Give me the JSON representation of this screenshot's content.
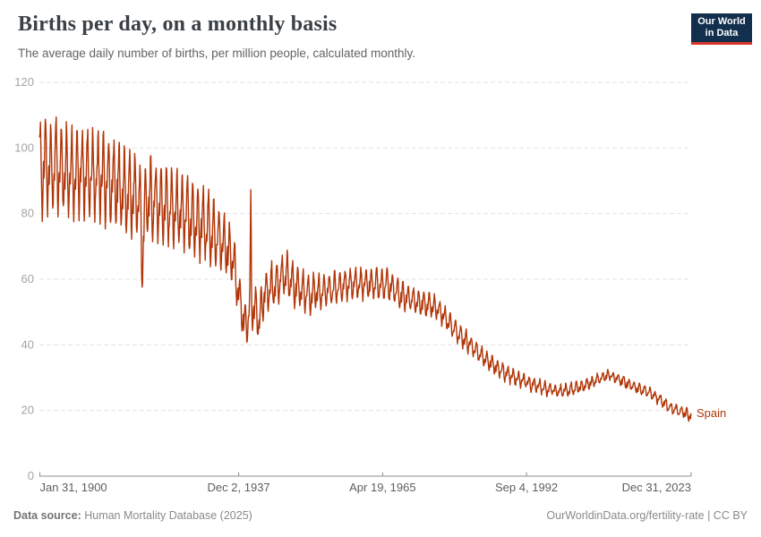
{
  "header": {
    "title": "Births per day, on a monthly basis",
    "subtitle": "The average daily number of births, per million people, calculated monthly.",
    "logo": {
      "line1": "Our World",
      "line2": "in Data",
      "bg_color": "#12304e",
      "bar_color": "#d8352b"
    }
  },
  "chart_data": {
    "type": "line",
    "title": "Births per day, on a monthly basis",
    "subtitle": "The average daily number of births, per million people, calculated monthly.",
    "frequency": "monthly",
    "grid": true,
    "legend_position": "end-of-line-label",
    "x_axis": {
      "ticks": [
        {
          "label": "Jan 31, 1900",
          "t": 1900.085,
          "anchor": "start"
        },
        {
          "label": "Dec 2, 1937",
          "t": 1937.918,
          "anchor": "middle"
        },
        {
          "label": "Apr 19, 1965",
          "t": 1965.3,
          "anchor": "middle"
        },
        {
          "label": "Sep 4, 1992",
          "t": 1992.675,
          "anchor": "middle"
        },
        {
          "label": "Dec 31, 2023",
          "t": 2023.997,
          "anchor": "end"
        }
      ],
      "range": [
        1900.0,
        2024.0
      ]
    },
    "y_axis": {
      "ticks": [
        0,
        20,
        40,
        60,
        80,
        100,
        120
      ],
      "min": 0,
      "max": 120
    },
    "series": [
      {
        "name": "Spain",
        "color": "#b13507",
        "unit": "births per day per million people",
        "trend_points": [
          [
            1900,
            93
          ],
          [
            1903,
            94
          ],
          [
            1906,
            93
          ],
          [
            1910,
            91.5
          ],
          [
            1914,
            89
          ],
          [
            1917,
            85.5
          ],
          [
            1920,
            84
          ],
          [
            1923,
            83
          ],
          [
            1926,
            80.5
          ],
          [
            1929,
            78
          ],
          [
            1932,
            75.5
          ],
          [
            1935,
            70.5
          ],
          [
            1936.6,
            67
          ],
          [
            1937.6,
            58.5
          ],
          [
            1938.6,
            49.5
          ],
          [
            1939.4,
            44
          ],
          [
            1939.9,
            51
          ],
          [
            1940.8,
            51
          ],
          [
            1941.6,
            49.5
          ],
          [
            1943,
            56
          ],
          [
            1945,
            58.5
          ],
          [
            1947,
            61.5
          ],
          [
            1949,
            57
          ],
          [
            1951,
            55.5
          ],
          [
            1954,
            56
          ],
          [
            1957,
            57.5
          ],
          [
            1960,
            58.5
          ],
          [
            1963,
            58.5
          ],
          [
            1966,
            58.5
          ],
          [
            1969,
            55
          ],
          [
            1972,
            53
          ],
          [
            1975,
            52
          ],
          [
            1977,
            48.5
          ],
          [
            1979,
            44.5
          ],
          [
            1981,
            41.5
          ],
          [
            1983,
            38.5
          ],
          [
            1985,
            35.5
          ],
          [
            1987,
            33
          ],
          [
            1989,
            31
          ],
          [
            1991,
            29.5
          ],
          [
            1993,
            28.3
          ],
          [
            1995,
            27.3
          ],
          [
            1997,
            26.3
          ],
          [
            1999,
            25.8
          ],
          [
            2001,
            26.3
          ],
          [
            2003,
            27.3
          ],
          [
            2005,
            28.5
          ],
          [
            2007,
            30
          ],
          [
            2008.5,
            30.8
          ],
          [
            2010,
            29.8
          ],
          [
            2012,
            28
          ],
          [
            2014,
            26.6
          ],
          [
            2016,
            25.4
          ],
          [
            2018,
            23.3
          ],
          [
            2020,
            20.8
          ],
          [
            2022,
            19.6
          ],
          [
            2024,
            18.4
          ]
        ],
        "seasonal_amplitude_points": [
          [
            1900,
            14.5
          ],
          [
            1910,
            13
          ],
          [
            1920,
            12
          ],
          [
            1930,
            11
          ],
          [
            1936,
            9
          ],
          [
            1939,
            6
          ],
          [
            1941,
            6.5
          ],
          [
            1945,
            7
          ],
          [
            1950,
            6
          ],
          [
            1955,
            5
          ],
          [
            1960,
            4.5
          ],
          [
            1965,
            4.5
          ],
          [
            1970,
            4
          ],
          [
            1975,
            3.5
          ],
          [
            1980,
            3
          ],
          [
            1985,
            2.5
          ],
          [
            1990,
            2.2
          ],
          [
            1995,
            1.9
          ],
          [
            2000,
            1.8
          ],
          [
            2005,
            1.7
          ],
          [
            2010,
            1.6
          ],
          [
            2015,
            1.5
          ],
          [
            2020,
            1.6
          ],
          [
            2024,
            1.5
          ]
        ],
        "seasonal_pattern_by_month": [
          0.55,
          0.95,
          1.0,
          0.5,
          -0.05,
          -0.65,
          -0.95,
          -0.7,
          -0.25,
          0.0,
          -0.3,
          0.15
        ],
        "notable_deviations": [
          {
            "t": 1919.55,
            "width": 0.25,
            "delta": -16
          },
          {
            "t": 1940.17,
            "width": 0.08,
            "delta": 30
          },
          {
            "t": 1941.9,
            "width": 0.35,
            "delta": -3
          }
        ],
        "observed_extremes": {
          "early_1900s_peak": 113,
          "civil_war_low_1939": 39,
          "post_war_spike_1940": 86,
          "final_value_2023": 19
        }
      }
    ],
    "style": {
      "line_color": "#b13507",
      "grid_color": "#e3e3e3",
      "axis_color": "#8f8f8f",
      "y_label_color": "#a3a3a3",
      "x_label_color": "#5f5f5f"
    }
  },
  "footer": {
    "datasource_label": "Data source:",
    "datasource_value": "Human Mortality Database (2025)",
    "credit": "OurWorldinData.org/fertility-rate | CC BY"
  }
}
